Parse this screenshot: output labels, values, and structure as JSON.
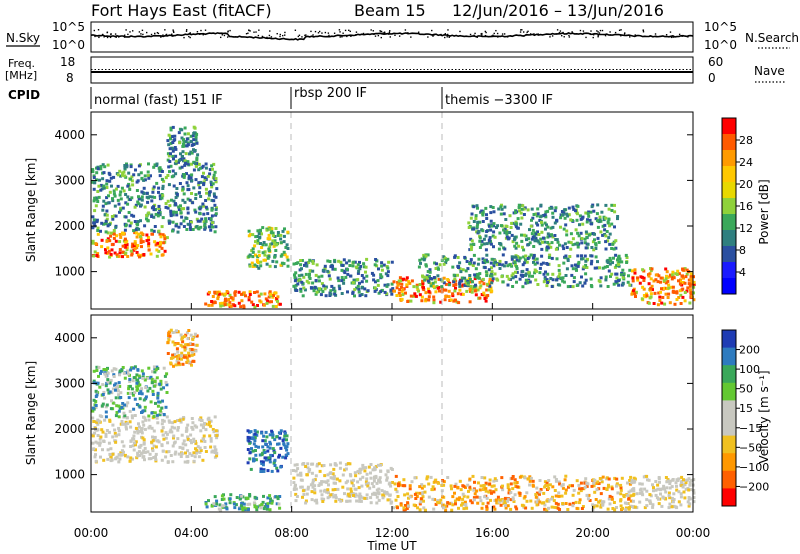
{
  "header": {
    "title": "Fort Hays East (fitACF)",
    "beam": "Beam 15",
    "dates": "12/Jun/2016 – 13/Jun/2016"
  },
  "nsky_panel": {
    "left_label": "N.Sky",
    "left_ticks": [
      "10^5",
      "10^0"
    ],
    "right_ticks": [
      "10^5",
      "10^0"
    ],
    "right_label": "N.Search"
  },
  "freq_panel": {
    "left_label_1": "Freq.",
    "left_label_2": "[MHz]",
    "left_ticks": [
      "18",
      "8"
    ],
    "right_ticks": [
      "60",
      "0"
    ],
    "right_label": "Nave"
  },
  "cpid": {
    "label": "CPID",
    "segments": [
      {
        "label": "normal (fast) 151 IF",
        "start_h": 0
      },
      {
        "label": "rbsp 200 IF",
        "start_h": 8
      },
      {
        "label": "themis −3300 IF",
        "start_h": 14
      }
    ]
  },
  "power_panel": {
    "colorbar_label": "Power [dB]",
    "colorbar_ticks": [
      "28",
      "24",
      "20",
      "16",
      "12",
      "8",
      "4"
    ],
    "colorbar_colors": [
      "#ff0000",
      "#ff5a00",
      "#ff9a00",
      "#ffc800",
      "#e8d800",
      "#8fd23a",
      "#3aa85a",
      "#2f7f7f",
      "#2a4fa0",
      "#1a1aff",
      "#0000ff"
    ]
  },
  "velocity_panel": {
    "colorbar_label": "Velocity [m s⁻¹]",
    "colorbar_ticks": [
      "200",
      "100",
      "50",
      "15",
      "−15",
      "−50",
      "−100",
      "−200"
    ],
    "colorbar_colors": [
      "#1f3cb4",
      "#2e7bbf",
      "#3aa85a",
      "#63c832",
      "#c8c8c0",
      "#c8c8c0",
      "#f0c020",
      "#ff9800",
      "#ff6000",
      "#ff0000"
    ]
  },
  "chart_data": {
    "type": "heatmap",
    "xlabel": "Time UT",
    "ylabel": "Slant Range [km]",
    "x_ticks": [
      "00:00",
      "04:00",
      "08:00",
      "12:00",
      "16:00",
      "20:00",
      "00:00"
    ],
    "y_ticks": [
      1000,
      2000,
      3000,
      4000
    ],
    "xlim_hours": [
      0,
      24
    ],
    "ylim_km": [
      180,
      4500
    ],
    "mode_change_hours": [
      8,
      14
    ],
    "power_regions": [
      {
        "t0": 0.0,
        "t1": 3.0,
        "r0": 1350,
        "r1": 1900,
        "level": "high"
      },
      {
        "t0": 0.0,
        "t1": 5.0,
        "r0": 1900,
        "r1": 3400,
        "level": "low"
      },
      {
        "t0": 3.0,
        "t1": 4.2,
        "r0": 3400,
        "r1": 4200,
        "level": "low"
      },
      {
        "t0": 4.5,
        "t1": 7.5,
        "r0": 250,
        "r1": 600,
        "level": "high"
      },
      {
        "t0": 6.2,
        "t1": 7.8,
        "r0": 1100,
        "r1": 2000,
        "level": "medium"
      },
      {
        "t0": 8.0,
        "t1": 12.0,
        "r0": 500,
        "r1": 1300,
        "level": "low"
      },
      {
        "t0": 12.0,
        "t1": 16.0,
        "r0": 350,
        "r1": 900,
        "level": "high"
      },
      {
        "t0": 13.0,
        "t1": 21.5,
        "r0": 700,
        "r1": 1400,
        "level": "low"
      },
      {
        "t0": 15.0,
        "t1": 21.0,
        "r0": 1500,
        "r1": 2500,
        "level": "low"
      },
      {
        "t0": 21.5,
        "t1": 24.0,
        "r0": 300,
        "r1": 1100,
        "level": "high"
      }
    ],
    "velocity_regions": [
      {
        "t0": 0.0,
        "t1": 5.0,
        "r0": 1300,
        "r1": 2300,
        "class": "near-zero"
      },
      {
        "t0": 0.0,
        "t1": 3.0,
        "r0": 2300,
        "r1": 3400,
        "class": "positive"
      },
      {
        "t0": 3.0,
        "t1": 4.2,
        "r0": 3400,
        "r1": 4200,
        "class": "negative"
      },
      {
        "t0": 4.5,
        "t1": 7.5,
        "r0": 250,
        "r1": 600,
        "class": "positive"
      },
      {
        "t0": 6.2,
        "t1": 7.8,
        "r0": 1100,
        "r1": 2000,
        "class": "strong-positive"
      },
      {
        "t0": 8.0,
        "t1": 12.0,
        "r0": 400,
        "r1": 1300,
        "class": "near-zero"
      },
      {
        "t0": 12.0,
        "t1": 21.5,
        "r0": 250,
        "r1": 1000,
        "class": "negative"
      },
      {
        "t0": 21.5,
        "t1": 24.0,
        "r0": 300,
        "r1": 1000,
        "class": "near-zero"
      }
    ]
  }
}
